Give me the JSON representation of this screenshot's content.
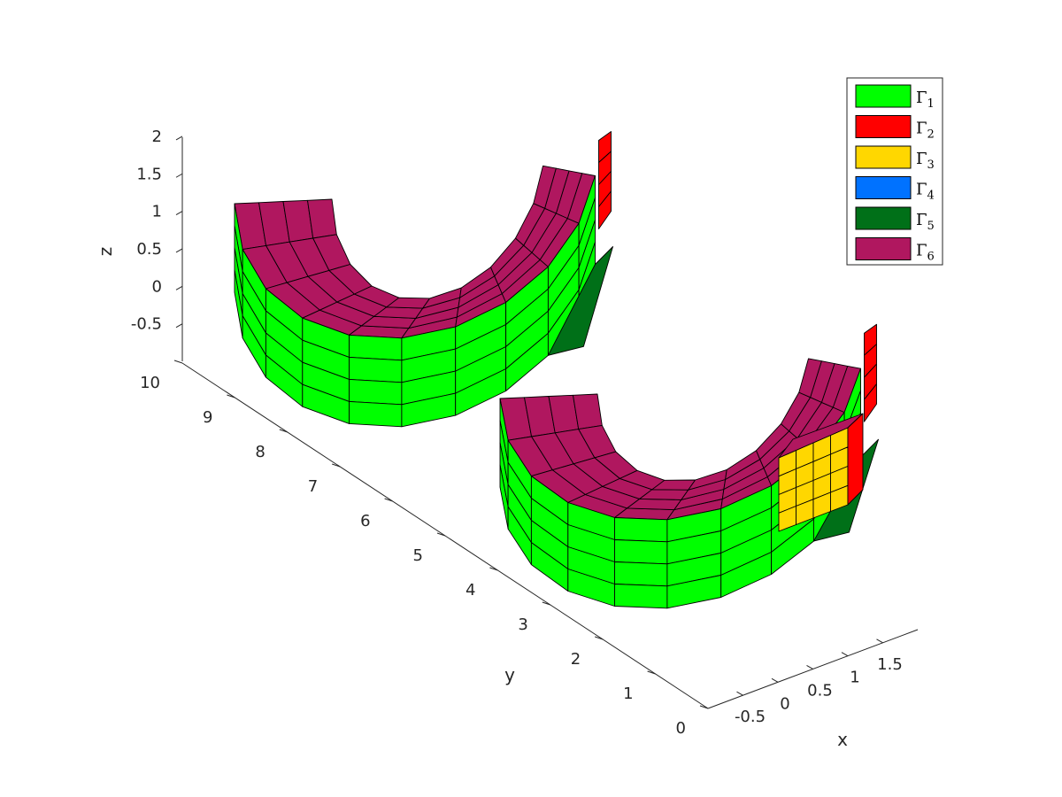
{
  "chart_data": {
    "type": "3d-surface",
    "title": "",
    "xlabel": "x",
    "ylabel": "y",
    "zlabel": "z",
    "x_ticks": [
      "-0.5",
      "0",
      "0.5",
      "1",
      "1.5"
    ],
    "y_ticks": [
      "0",
      "1",
      "2",
      "3",
      "4",
      "5",
      "6",
      "7",
      "8",
      "9",
      "10"
    ],
    "z_ticks": [
      "-0.5",
      "0",
      "0.5",
      "1",
      "1.5",
      "2"
    ],
    "xlim": [
      -1,
      2
    ],
    "ylim": [
      0,
      10
    ],
    "zlim": [
      -1,
      2
    ],
    "grid": false,
    "legend_position": "top-right",
    "legend": [
      {
        "symbol": "Γ",
        "sub": "1",
        "color": "#00ff00"
      },
      {
        "symbol": "Γ",
        "sub": "2",
        "color": "#ff0000"
      },
      {
        "symbol": "Γ",
        "sub": "3",
        "color": "#ffd700"
      },
      {
        "symbol": "Γ",
        "sub": "4",
        "color": "#0072ff"
      },
      {
        "symbol": "Γ",
        "sub": "5",
        "color": "#007018"
      },
      {
        "symbol": "Γ",
        "sub": "6",
        "color": "#b0175f"
      }
    ],
    "shapes": [
      {
        "name": "half-annulus (back)",
        "y_offset": 6.5
      },
      {
        "name": "half-annulus (front)",
        "y_offset": 0
      }
    ]
  }
}
